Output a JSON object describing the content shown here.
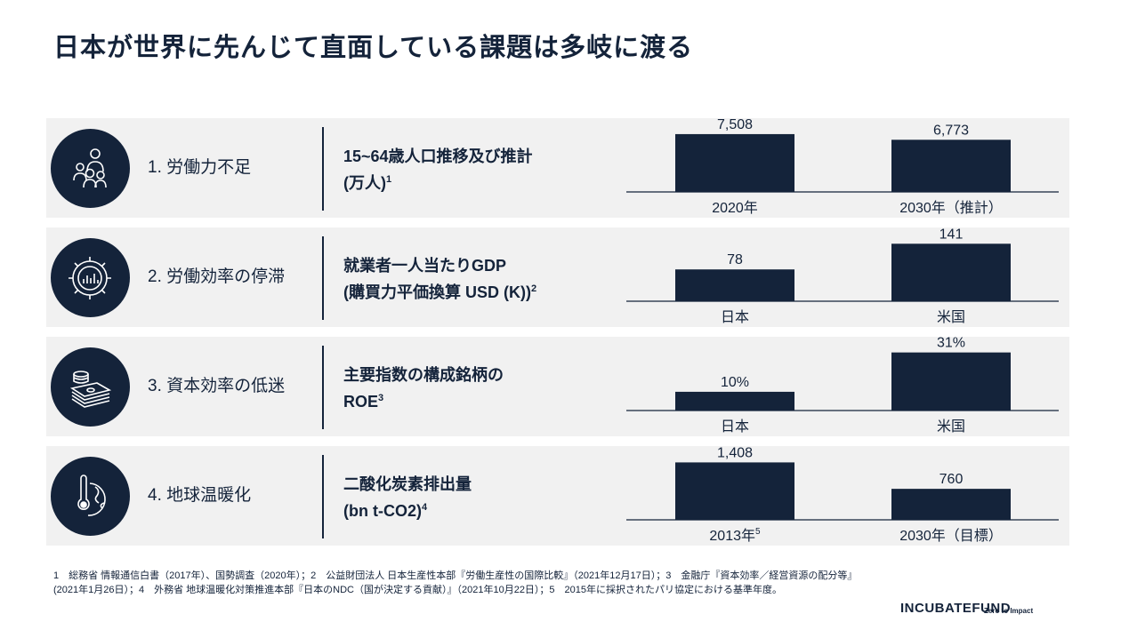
{
  "title": "日本が世界に先んじて直面している課題は多岐に渡る",
  "rows": [
    {
      "label": "1. 労働力不足",
      "desc_line1": "15~64歳人口推移及び推計",
      "desc_line2": "(万人)",
      "sup": "1",
      "icon": "people-group-icon"
    },
    {
      "label": "2. 労働効率の停滞",
      "desc_line1": "就業者一人当たりGDP",
      "desc_line2": "(購買力平価換算 USD (K))",
      "sup": "2",
      "icon": "gear-chart-icon"
    },
    {
      "label": "3. 資本効率の低迷",
      "desc_line1": "主要指数の構成銘柄の",
      "desc_line2": "ROE",
      "sup": "3",
      "icon": "money-stack-icon"
    },
    {
      "label": "4. 地球温暖化",
      "desc_line1": "二酸化炭素排出量",
      "desc_line2": "(bn t-CO2)",
      "sup": "4",
      "icon": "thermometer-globe-icon"
    }
  ],
  "chart_data": [
    {
      "type": "bar",
      "categories": [
        "2020年",
        "2030年（推計）"
      ],
      "values": [
        7508,
        6773
      ],
      "value_labels": [
        "7,508",
        "6,773"
      ],
      "ylim": [
        0,
        9000
      ]
    },
    {
      "type": "bar",
      "categories": [
        "日本",
        "米国"
      ],
      "values": [
        78,
        141
      ],
      "value_labels": [
        "78",
        "141"
      ],
      "ylim": [
        0,
        170
      ]
    },
    {
      "type": "bar",
      "categories": [
        "日本",
        "米国"
      ],
      "values": [
        10,
        31
      ],
      "value_labels": [
        "10%",
        "31%"
      ],
      "ylim": [
        0,
        37
      ]
    },
    {
      "type": "bar",
      "categories": [
        "2013年",
        "2030年（目標）"
      ],
      "category_sup": [
        "5",
        ""
      ],
      "values": [
        1408,
        760
      ],
      "value_labels": [
        "1,408",
        "760"
      ],
      "ylim": [
        0,
        1700
      ]
    }
  ],
  "footnote_line1": "1　総務省 情報通信白書（2017年）、国勢調査（2020年）；2　公益財団法人 日本生産性本部『労働生産性の国際比較』（2021年12月17日）；3　金融庁『資本効率／経営資源の配分等』",
  "footnote_line2": "(2021年1月26日）；4　外務省 地球温暖化対策推進本部『日本のNDC（国が決定する貢献）』（2021年10月22日）；5　2015年に採択されたパリ協定における基準年度。",
  "brand": {
    "name": "INCUBATEFUND",
    "tagline": "Zero to Impact"
  },
  "colors": {
    "navy": "#14233a",
    "row_bg": "#f1f1f1"
  }
}
